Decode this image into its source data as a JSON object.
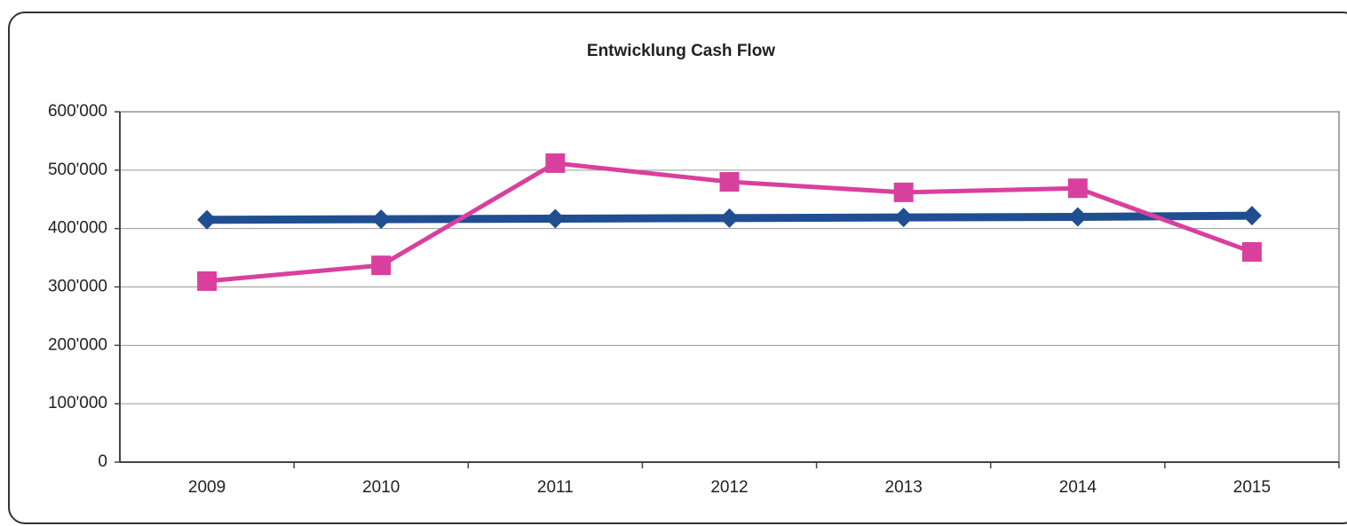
{
  "chart_data": {
    "type": "line",
    "title": "Entwicklung Cash Flow",
    "categories": [
      "2009",
      "2010",
      "2011",
      "2012",
      "2013",
      "2014",
      "2015"
    ],
    "series": [
      {
        "color": "#1f4f91",
        "marker": "diamond",
        "values": [
          415000,
          416000,
          417000,
          418000,
          419000,
          420000,
          422000
        ]
      },
      {
        "color": "#d9409e",
        "marker": "square",
        "values": [
          310000,
          337000,
          512000,
          480000,
          462000,
          469000,
          360000
        ]
      }
    ],
    "ylim": [
      0,
      600000
    ],
    "yticks": [
      0,
      {
        "value": 100000,
        "label": "100'000"
      },
      {
        "value": 200000,
        "label": "200'000"
      },
      {
        "value": 300000,
        "label": "300'000"
      },
      {
        "value": 400000,
        "label": "400'000"
      },
      {
        "value": 500000,
        "label": "500'000"
      },
      {
        "value": 600000,
        "label": "600'000"
      }
    ],
    "grid": true
  }
}
